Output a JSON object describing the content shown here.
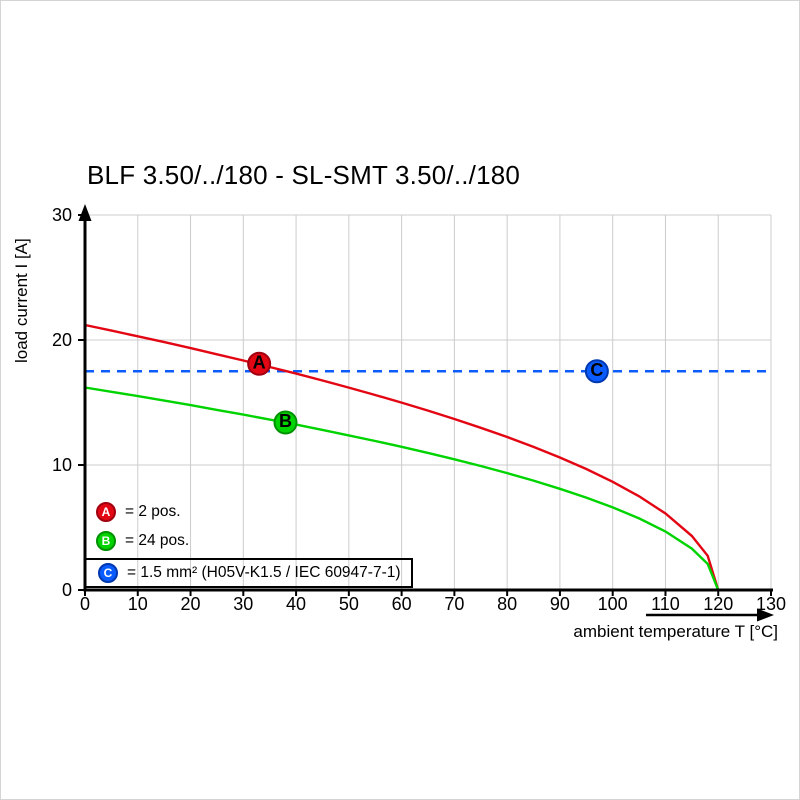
{
  "title": "BLF 3.50/../180 - SL-SMT 3.50/../180",
  "axes": {
    "y_label": "load current I [A]",
    "x_label": "ambient temperature T [°C]"
  },
  "legend": {
    "items": [
      {
        "key": "A",
        "label": "= 2 pos.",
        "color": "#e30613",
        "ring": "#a00010"
      },
      {
        "key": "B",
        "label": "= 24 pos.",
        "color": "#00d400",
        "ring": "#009000"
      },
      {
        "key": "C",
        "label": "= 1.5 mm² (H05V-K1.5 / IEC 60947-7-1)",
        "color": "#0b5cff",
        "ring": "#0038b0"
      }
    ]
  },
  "chart_data": {
    "type": "line",
    "title": "BLF 3.50/../180 - SL-SMT 3.50/../180",
    "xlabel": "ambient temperature T [°C]",
    "ylabel": "load current I [A]",
    "xlim": [
      0,
      130
    ],
    "ylim": [
      0,
      30
    ],
    "x_ticks": [
      0,
      10,
      20,
      30,
      40,
      50,
      60,
      70,
      80,
      90,
      100,
      110,
      120,
      130
    ],
    "y_ticks": [
      0,
      10,
      20,
      30
    ],
    "grid": true,
    "grid_color": "#cccccc",
    "threshold": {
      "name": "C",
      "label": "1.5 mm² (H05V-K1.5 / IEC 60947-7-1)",
      "value": 17.5,
      "marker_x": 97,
      "color": "#0b5cff",
      "ring": "#0038b0",
      "style": "dashed"
    },
    "series": [
      {
        "name": "A",
        "label": "2 pos.",
        "color": "#e30613",
        "ring": "#a00010",
        "marker": {
          "x": 33,
          "y": 18.1
        },
        "points": [
          [
            0,
            21.2
          ],
          [
            5,
            20.75
          ],
          [
            10,
            20.3
          ],
          [
            15,
            19.83
          ],
          [
            20,
            19.35
          ],
          [
            25,
            18.86
          ],
          [
            30,
            18.36
          ],
          [
            35,
            17.84
          ],
          [
            40,
            17.31
          ],
          [
            45,
            16.76
          ],
          [
            50,
            16.19
          ],
          [
            55,
            15.6
          ],
          [
            60,
            14.99
          ],
          [
            65,
            14.35
          ],
          [
            70,
            13.68
          ],
          [
            75,
            12.98
          ],
          [
            80,
            12.24
          ],
          [
            85,
            11.45
          ],
          [
            90,
            10.6
          ],
          [
            95,
            9.68
          ],
          [
            100,
            8.66
          ],
          [
            105,
            7.5
          ],
          [
            110,
            6.12
          ],
          [
            115,
            4.33
          ],
          [
            118,
            2.74
          ],
          [
            120,
            0
          ]
        ]
      },
      {
        "name": "B",
        "label": "24 pos.",
        "color": "#00d400",
        "ring": "#009000",
        "marker": {
          "x": 38,
          "y": 13.4
        },
        "points": [
          [
            0,
            16.2
          ],
          [
            5,
            15.86
          ],
          [
            10,
            15.51
          ],
          [
            15,
            15.15
          ],
          [
            20,
            14.79
          ],
          [
            25,
            14.41
          ],
          [
            30,
            14.03
          ],
          [
            35,
            13.63
          ],
          [
            40,
            13.23
          ],
          [
            45,
            12.81
          ],
          [
            50,
            12.37
          ],
          [
            55,
            11.92
          ],
          [
            60,
            11.46
          ],
          [
            65,
            10.97
          ],
          [
            70,
            10.46
          ],
          [
            75,
            9.92
          ],
          [
            80,
            9.35
          ],
          [
            85,
            8.75
          ],
          [
            90,
            8.1
          ],
          [
            95,
            7.39
          ],
          [
            100,
            6.61
          ],
          [
            105,
            5.73
          ],
          [
            110,
            4.68
          ],
          [
            115,
            3.31
          ],
          [
            118,
            2.09
          ],
          [
            120,
            0
          ]
        ]
      }
    ]
  }
}
